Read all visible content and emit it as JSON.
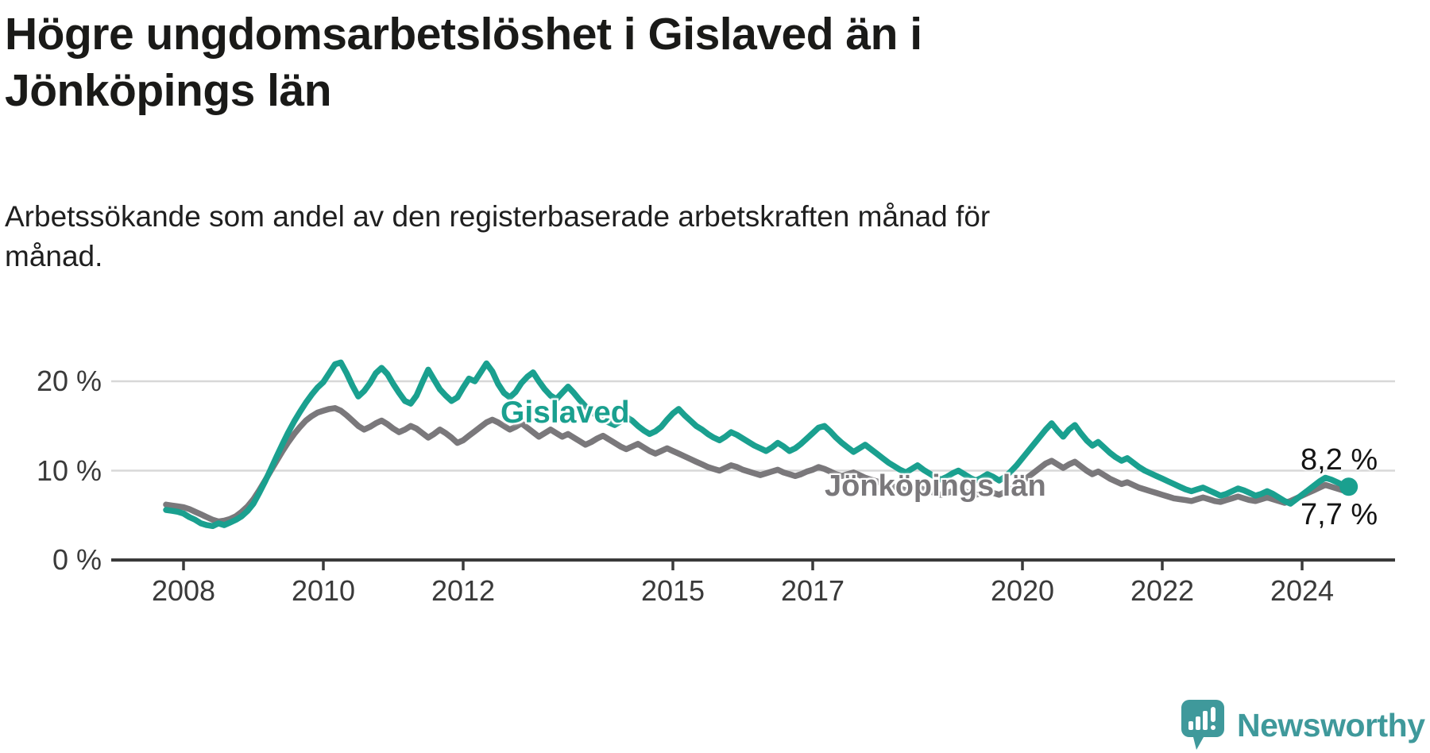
{
  "header": {
    "title_lines": [
      "Högre ungdomsarbetslöshet i Gislaved än i",
      "Jönköpings län"
    ],
    "subtitle_lines": [
      "Arbetssökande som andel av den registerbaserade arbetskraften månad för",
      "månad."
    ]
  },
  "colors": {
    "gislaved": "#1aa08f",
    "jonkopings_lan": "#7a787b",
    "grid": "#d8d8d8",
    "axis": "#3a3a3a",
    "text": "#1a1a18",
    "brand_teal": "#3f999b"
  },
  "footer": {
    "brand": "Newsworthy"
  },
  "chart_data": {
    "type": "line",
    "title": "Högre ungdomsarbetslöshet i Gislaved än i Jönköpings län",
    "subtitle": "Arbetssökande som andel av den registerbaserade arbetskraften månad för månad.",
    "x_unit": "decimal_year_monthly",
    "x0": 2007.75,
    "dx": 0.0833333,
    "xlim": [
      2006.97,
      2025.35
    ],
    "ylim": [
      0,
      26.5
    ],
    "grid": "horizontal",
    "x_tick_years": [
      2008,
      2010,
      2012,
      2015,
      2017,
      2020,
      2022,
      2024
    ],
    "x_tick_labels": [
      "2008",
      "2010",
      "2012",
      "2015",
      "2017",
      "2020",
      "2022",
      "2024"
    ],
    "y_tick_values": [
      0,
      10,
      20
    ],
    "y_tick_labels": [
      "0 %",
      "10 %",
      "20 %"
    ],
    "series": [
      {
        "name": "Gislaved",
        "end_label": "8,2 %",
        "end_value": 8.2,
        "values": [
          5.6,
          5.5,
          5.4,
          5.2,
          4.8,
          4.5,
          4.1,
          3.9,
          3.8,
          4.1,
          3.9,
          4.2,
          4.5,
          4.9,
          5.5,
          6.3,
          7.5,
          8.8,
          10.2,
          11.6,
          13.0,
          14.3,
          15.5,
          16.6,
          17.6,
          18.5,
          19.3,
          19.9,
          20.9,
          21.9,
          22.1,
          20.9,
          19.5,
          18.3,
          18.9,
          19.8,
          20.9,
          21.5,
          20.8,
          19.7,
          18.7,
          17.8,
          17.5,
          18.4,
          19.9,
          21.3,
          20.2,
          19.1,
          18.4,
          17.8,
          18.2,
          19.3,
          20.3,
          20.0,
          21.0,
          22.0,
          21.1,
          19.7,
          18.7,
          18.2,
          18.8,
          19.8,
          20.5,
          21.0,
          20.0,
          19.1,
          18.4,
          18.0,
          18.7,
          19.4,
          18.7,
          17.9,
          17.2,
          16.6,
          16.1,
          15.7,
          15.4,
          15.1,
          15.5,
          16.0,
          15.6,
          15.0,
          14.5,
          14.1,
          14.4,
          14.9,
          15.7,
          16.4,
          16.9,
          16.2,
          15.6,
          15.0,
          14.6,
          14.1,
          13.7,
          13.4,
          13.8,
          14.3,
          14.0,
          13.6,
          13.2,
          12.8,
          12.5,
          12.2,
          12.6,
          13.1,
          12.7,
          12.2,
          12.5,
          13.0,
          13.6,
          14.2,
          14.8,
          15.0,
          14.4,
          13.7,
          13.1,
          12.6,
          12.1,
          12.5,
          12.9,
          12.4,
          11.9,
          11.4,
          10.9,
          10.5,
          10.1,
          9.8,
          10.2,
          10.6,
          10.1,
          9.7,
          9.3,
          9.0,
          9.3,
          9.7,
          10.0,
          9.6,
          9.2,
          8.9,
          9.2,
          9.6,
          9.3,
          8.9,
          9.3,
          9.9,
          10.6,
          11.4,
          12.2,
          13.0,
          13.8,
          14.6,
          15.3,
          14.5,
          13.8,
          14.6,
          15.1,
          14.2,
          13.4,
          12.8,
          13.2,
          12.6,
          12.0,
          11.5,
          11.1,
          11.4,
          10.9,
          10.4,
          10.0,
          9.7,
          9.4,
          9.1,
          8.8,
          8.5,
          8.2,
          7.9,
          7.7,
          7.9,
          8.1,
          7.8,
          7.5,
          7.2,
          7.4,
          7.7,
          8.0,
          7.8,
          7.5,
          7.2,
          7.4,
          7.7,
          7.4,
          7.0,
          6.6,
          6.3,
          6.8,
          7.3,
          7.8,
          8.3,
          8.8,
          9.2,
          9.0,
          8.7,
          8.4,
          8.2
        ]
      },
      {
        "name": "Jönköpings län",
        "end_label": "7,7 %",
        "end_value": 7.7,
        "values": [
          6.2,
          6.1,
          6.0,
          5.9,
          5.7,
          5.4,
          5.1,
          4.8,
          4.5,
          4.3,
          4.4,
          4.6,
          4.9,
          5.4,
          6.0,
          6.8,
          7.8,
          8.9,
          10.0,
          11.1,
          12.2,
          13.2,
          14.1,
          14.9,
          15.6,
          16.1,
          16.5,
          16.7,
          16.9,
          17.0,
          16.7,
          16.2,
          15.6,
          15.0,
          14.6,
          14.9,
          15.3,
          15.6,
          15.2,
          14.7,
          14.3,
          14.6,
          15.0,
          14.7,
          14.2,
          13.7,
          14.1,
          14.6,
          14.2,
          13.7,
          13.1,
          13.4,
          13.9,
          14.4,
          14.9,
          15.4,
          15.7,
          15.4,
          15.0,
          14.6,
          14.9,
          15.3,
          14.8,
          14.3,
          13.8,
          14.2,
          14.6,
          14.2,
          13.8,
          14.1,
          13.7,
          13.3,
          12.9,
          13.2,
          13.6,
          13.9,
          13.5,
          13.1,
          12.7,
          12.4,
          12.7,
          13.0,
          12.6,
          12.2,
          11.9,
          12.2,
          12.5,
          12.2,
          11.9,
          11.6,
          11.3,
          11.0,
          10.7,
          10.4,
          10.2,
          10.0,
          10.3,
          10.6,
          10.4,
          10.1,
          9.9,
          9.7,
          9.5,
          9.7,
          9.9,
          10.1,
          9.8,
          9.6,
          9.4,
          9.6,
          9.9,
          10.1,
          10.4,
          10.2,
          9.9,
          9.6,
          9.4,
          9.6,
          9.8,
          9.5,
          9.2,
          9.0,
          8.8,
          8.6,
          8.4,
          8.2,
          8.0,
          7.8,
          8.0,
          8.2,
          7.9,
          7.7,
          7.5,
          7.3,
          7.5,
          7.7,
          7.9,
          7.7,
          7.5,
          7.3,
          7.5,
          7.7,
          7.5,
          7.3,
          7.6,
          7.9,
          8.3,
          8.8,
          9.3,
          9.8,
          10.3,
          10.8,
          11.1,
          10.7,
          10.3,
          10.7,
          11.0,
          10.5,
          10.0,
          9.6,
          9.9,
          9.5,
          9.1,
          8.8,
          8.5,
          8.7,
          8.4,
          8.1,
          7.9,
          7.7,
          7.5,
          7.3,
          7.1,
          6.9,
          6.8,
          6.7,
          6.6,
          6.8,
          7.0,
          6.8,
          6.6,
          6.5,
          6.7,
          6.9,
          7.1,
          6.9,
          6.7,
          6.6,
          6.8,
          7.0,
          6.8,
          6.6,
          6.4,
          6.6,
          6.9,
          7.2,
          7.5,
          7.8,
          8.1,
          8.4,
          8.2,
          8.0,
          7.8,
          7.7
        ]
      }
    ]
  }
}
